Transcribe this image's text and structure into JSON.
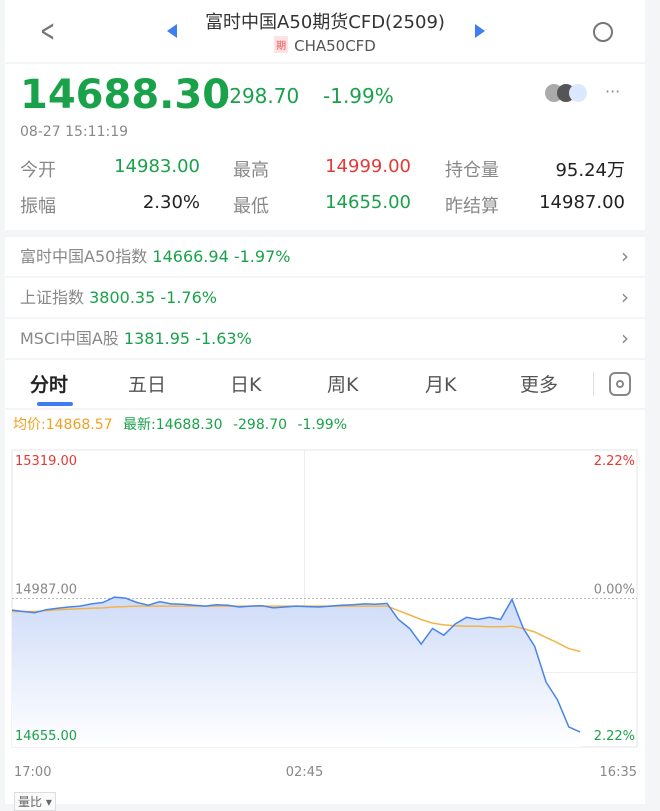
{
  "header": {
    "title": "富时中国A50期货CFD(2509)",
    "badge": "期",
    "code": "CHA50CFD",
    "back_icon": "chevron-left-icon",
    "search_icon": "search-icon",
    "prev_icon": "triangle-left-icon",
    "next_icon": "triangle-right-icon"
  },
  "quote": {
    "price": "14688.30",
    "change": "-298.70",
    "change_pct": "-1.99%",
    "time": "08-27 15:11:19",
    "more": "···"
  },
  "stats": [
    {
      "label": "今开",
      "value": "14983.00",
      "color": "green"
    },
    {
      "label": "最高",
      "value": "14999.00",
      "color": "red"
    },
    {
      "label": "持仓量",
      "value": "95.24万",
      "color": "black"
    },
    {
      "label": "振幅",
      "value": "2.30%",
      "color": "black"
    },
    {
      "label": "最低",
      "value": "14655.00",
      "color": "green"
    },
    {
      "label": "昨结算",
      "value": "14987.00",
      "color": "black"
    }
  ],
  "indices": [
    {
      "name": "富时中国A50指数",
      "value": "14666.94",
      "pct": "-1.97%"
    },
    {
      "name": "上证指数",
      "value": "3800.35",
      "pct": "-1.76%"
    },
    {
      "name": "MSCI中国A股",
      "value": "1381.95",
      "pct": "-1.63%"
    }
  ],
  "tabs": [
    "分时",
    "五日",
    "日K",
    "周K",
    "月K",
    "更多"
  ],
  "active_tab": 0,
  "legend": {
    "avg": "均价:14868.57",
    "latest": "最新:14688.30",
    "change": "-298.70",
    "pct": "-1.99%"
  },
  "bottom_button": "量比 ▾",
  "colors": {
    "green": "#1aa24a",
    "red": "#e53935",
    "price_line": "#4a84e8",
    "avg_line": "#f2b44a",
    "accent": "#3d7ef0"
  },
  "chart_data": {
    "type": "line",
    "ylim": [
      14655,
      15319
    ],
    "y_labels_left": [
      "15319.00",
      "14987.00",
      "14655.00"
    ],
    "y_labels_right": [
      "2.22%",
      "0.00%",
      "2.22%"
    ],
    "reference": 14987,
    "x_labels": [
      "17:00",
      "02:45",
      "16:35"
    ],
    "series": [
      {
        "name": "最新",
        "values": [
          14961,
          14958,
          14955,
          14962,
          14965,
          14968,
          14970,
          14975,
          14978,
          14990,
          14988,
          14978,
          14972,
          14980,
          14975,
          14974,
          14972,
          14970,
          14973,
          14972,
          14968,
          14970,
          14971,
          14966,
          14968,
          14970,
          14969,
          14968,
          14970,
          14972,
          14973,
          14975,
          14974,
          14976,
          14940,
          14920,
          14885,
          14920,
          14905,
          14930,
          14945,
          14940,
          14945,
          14940,
          14985,
          14920,
          14880,
          14800,
          14760,
          14700,
          14688.3
        ]
      },
      {
        "name": "均价",
        "values": [
          14958,
          14958,
          14958,
          14960,
          14962,
          14963,
          14964,
          14965,
          14966,
          14968,
          14969,
          14970,
          14970,
          14970,
          14970,
          14970,
          14970,
          14970,
          14970,
          14970,
          14970,
          14970,
          14970,
          14970,
          14970,
          14970,
          14970,
          14970,
          14970,
          14970,
          14970,
          14970,
          14970,
          14970,
          14960,
          14950,
          14940,
          14932,
          14928,
          14926,
          14925,
          14925,
          14924,
          14924,
          14925,
          14920,
          14912,
          14900,
          14888,
          14875,
          14868.57
        ]
      }
    ]
  }
}
